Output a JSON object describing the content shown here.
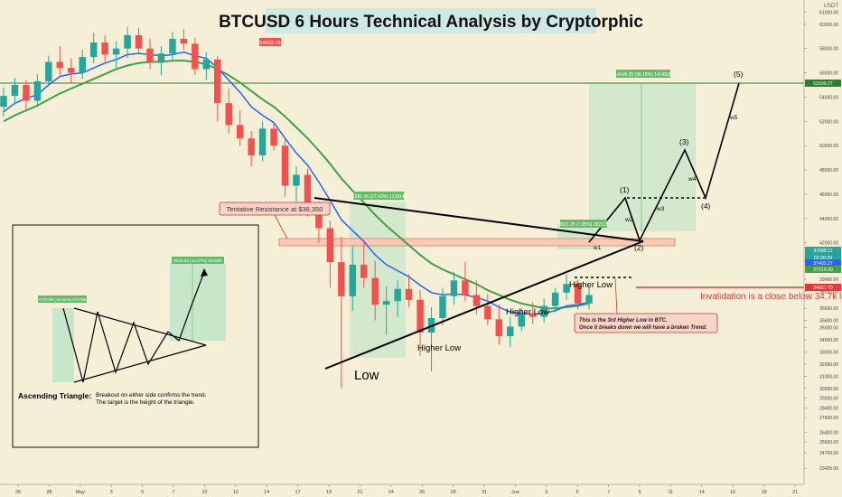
{
  "title": "BTCUSD 6 Hours Technical Analysis by Cryptorphic",
  "currency_label": "USDT",
  "colors": {
    "background": "#f5efd8",
    "bull": "#26a69a",
    "bear": "#ef5350",
    "ema_fast": "#2962ff",
    "ema_slow": "#43a047",
    "green_line": "#2e7d32",
    "invalidation": "#e53935",
    "resistance_fill": "#f8c9b4",
    "projection_fill": "#c8e6c9"
  },
  "annotations": {
    "high_price_tag": "54693.76",
    "resistance_label": "Tentative Resistance at $38,350",
    "measure_drop": "11281.45 (27.43%) 1128145",
    "measure_target": "14148.35 (36.18%) 1414835",
    "measure_breakout": "2821.25 (7.85%) 282125",
    "low_label": "Low",
    "higher_low_1": "Higher Low",
    "higher_low_2": "Higher Low",
    "higher_low_3": "Higher Low",
    "invalidation": "Invalidation is a close below 34.7k levels",
    "note_line1": "This is the 3rd HIgher Low in BTC.",
    "note_line2": "Once it breaks down we will have a broken Trend.",
    "wave_labels": [
      "w1",
      "w2",
      "w3",
      "w4",
      "w5"
    ],
    "wave_counts": [
      "(1)",
      "(2)",
      "(3)",
      "(4)",
      "(5)"
    ]
  },
  "inset": {
    "measure_small": "4727.96 (16.52%) 472796",
    "measure_target_small": "5015.80 (16.07%) 501580",
    "title": "Ascending Triangle:",
    "desc_line1": "Breakout on either side confirms the trend.",
    "desc_line2": "The target is the height of the triangle."
  },
  "price_tags": [
    {
      "label": "53199.27",
      "bg": "#2e7d32"
    },
    {
      "label": "37688.11",
      "bg": "#26a69a"
    },
    {
      "label": "02:26:29",
      "bg": "#26a69a"
    },
    {
      "label": "37402.27",
      "bg": "#2962ff"
    },
    {
      "label": "37219.30",
      "bg": "#43a047"
    },
    {
      "label": "34651.79",
      "bg": "#e53935"
    }
  ],
  "chart_data": {
    "type": "candlestick",
    "title": "BTCUSD 6 Hours Technical Analysis by Cryptorphic",
    "xlabel": "",
    "ylabel": "",
    "ylim": [
      22400,
      61700
    ],
    "y_ticks": [
      23425,
      24700,
      25600,
      26400,
      27600,
      28400,
      29200,
      30000,
      31000,
      32000,
      33000,
      34000,
      35000,
      35600,
      36600,
      38000,
      39000,
      40500,
      42000,
      44000,
      46000,
      48000,
      50000,
      52000,
      54000,
      56000,
      58000,
      60000,
      61000
    ],
    "y_tick_labels": [
      "23425.00",
      "24700.00",
      "25600.00",
      "26400.00",
      "27600.00",
      "28400.00",
      "29200.00",
      "30000.00",
      "31000.00",
      "32000.00",
      "33000.00",
      "34000.00",
      "35000.00",
      "35600.00",
      "36600.00",
      "38000.00",
      "39000.00",
      "40500.00",
      "42000.00",
      "44000.00",
      "46000.00",
      "48000.00",
      "50000.00",
      "52000.00",
      "54000.00",
      "56000.00",
      "58000.00",
      "60000.00",
      "61000.00"
    ],
    "x_ticks": [
      "26",
      "28",
      "May",
      "3",
      "5",
      "7",
      "10",
      "12",
      "14",
      "17",
      "19",
      "21",
      "24",
      "26",
      "28",
      "31",
      "Jun",
      "3",
      "5",
      "7",
      "9",
      "11",
      "14",
      "16",
      "18",
      "21"
    ],
    "grid": false,
    "series": [
      {
        "name": "",
        "kind": "ohlc",
        "ohlc": [
          [
            53200,
            54800,
            52400,
            54100
          ],
          [
            54100,
            55600,
            53400,
            55000
          ],
          [
            55000,
            55400,
            53000,
            53700
          ],
          [
            53700,
            55900,
            53200,
            55300
          ],
          [
            55300,
            57400,
            54900,
            56900
          ],
          [
            56900,
            58200,
            55800,
            56400
          ],
          [
            56400,
            57200,
            55100,
            56000
          ],
          [
            56000,
            57900,
            55500,
            57300
          ],
          [
            57300,
            59300,
            56800,
            58500
          ],
          [
            58500,
            59100,
            56900,
            57500
          ],
          [
            57500,
            58600,
            56400,
            58000
          ],
          [
            58000,
            59800,
            57200,
            59100
          ],
          [
            59100,
            59700,
            57600,
            58000
          ],
          [
            58000,
            58800,
            56300,
            56900
          ],
          [
            56900,
            58200,
            55800,
            57600
          ],
          [
            57600,
            59400,
            56900,
            58800
          ],
          [
            58800,
            59600,
            57900,
            58400
          ],
          [
            58400,
            58900,
            55800,
            56300
          ],
          [
            56300,
            57700,
            55400,
            57100
          ],
          [
            57100,
            57400,
            52000,
            53500
          ],
          [
            53500,
            54700,
            51000,
            51700
          ],
          [
            51700,
            52900,
            50000,
            50600
          ],
          [
            50600,
            51200,
            48300,
            49200
          ],
          [
            49200,
            52000,
            48700,
            51400
          ],
          [
            51400,
            51800,
            49600,
            50000
          ],
          [
            50000,
            50600,
            45800,
            46700
          ],
          [
            46700,
            48300,
            45200,
            47600
          ],
          [
            47600,
            48100,
            44200,
            45000
          ],
          [
            45000,
            45400,
            42000,
            43200
          ],
          [
            43200,
            43800,
            38300,
            40400
          ],
          [
            40400,
            42500,
            30000,
            37600
          ],
          [
            37600,
            41700,
            36400,
            40200
          ],
          [
            40200,
            42200,
            38300,
            39100
          ],
          [
            39100,
            40500,
            35600,
            36900
          ],
          [
            36900,
            38400,
            34400,
            37200
          ],
          [
            37200,
            38900,
            35900,
            38200
          ],
          [
            38200,
            39400,
            36700,
            37300
          ],
          [
            37300,
            38100,
            32700,
            34600
          ],
          [
            34600,
            36700,
            31400,
            35800
          ],
          [
            35800,
            38300,
            35200,
            37600
          ],
          [
            37600,
            39600,
            36900,
            38900
          ],
          [
            38900,
            40400,
            37200,
            37700
          ],
          [
            37700,
            38900,
            36100,
            36800
          ],
          [
            36800,
            37800,
            35200,
            35700
          ],
          [
            35700,
            36900,
            33600,
            34300
          ],
          [
            34300,
            35900,
            33400,
            35100
          ],
          [
            35100,
            36600,
            34700,
            36200
          ],
          [
            36200,
            37100,
            35300,
            35900
          ],
          [
            35900,
            37400,
            35400,
            36800
          ],
          [
            36800,
            38300,
            36300,
            37900
          ],
          [
            37900,
            39400,
            37300,
            38600
          ],
          [
            38600,
            39000,
            36500,
            37000
          ],
          [
            37000,
            38400,
            36500,
            37700
          ]
        ]
      },
      {
        "name": "",
        "kind": "ema_fast",
        "values": [
          52800,
          53500,
          53900,
          54200,
          55000,
          55700,
          55900,
          56000,
          56400,
          56800,
          57100,
          57500,
          57600,
          57500,
          57400,
          57500,
          57700,
          57400,
          57200,
          56400,
          55400,
          54400,
          53200,
          52500,
          51900,
          50600,
          49400,
          48400,
          47000,
          45500,
          43900,
          43000,
          42100,
          41000,
          40200,
          39700,
          39200,
          38500,
          37900,
          37700,
          37800,
          37700,
          37500,
          37200,
          36700,
          36300,
          36200,
          36100,
          36200,
          36400,
          36800,
          36900,
          37100
        ]
      },
      {
        "name": "",
        "kind": "ema_slow",
        "values": [
          52000,
          52500,
          52900,
          53300,
          53800,
          54300,
          54700,
          55100,
          55500,
          55900,
          56300,
          56600,
          56800,
          56900,
          56900,
          57000,
          57000,
          56900,
          56700,
          56300,
          55800,
          55200,
          54500,
          53800,
          53200,
          52400,
          51500,
          50600,
          49600,
          48500,
          47300,
          46300,
          45300,
          44300,
          43400,
          42600,
          41800,
          41000,
          40300,
          39800,
          39400,
          39000,
          38600,
          38100,
          37700,
          37300,
          37000,
          36800,
          36600,
          36600,
          36700,
          36800,
          37000
        ]
      }
    ]
  }
}
